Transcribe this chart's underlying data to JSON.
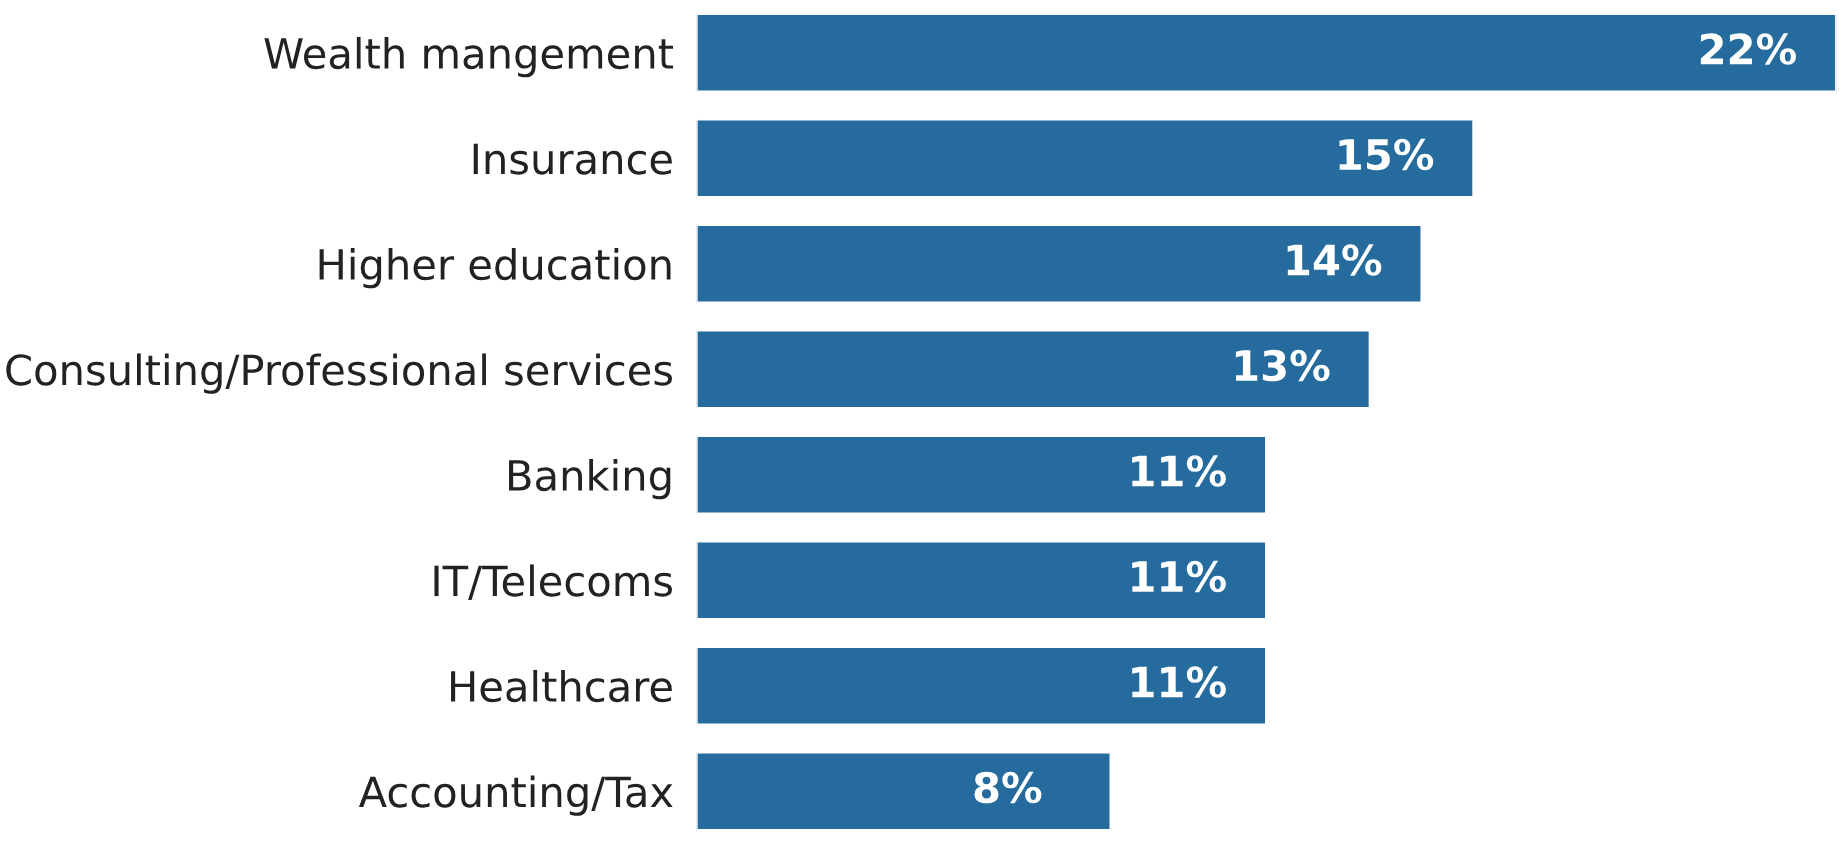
{
  "chart_data": {
    "type": "bar",
    "orientation": "horizontal",
    "categories": [
      "Wealth mangement",
      "Insurance",
      "Higher education",
      "Consulting/Professional services",
      "Banking",
      "IT/Telecoms",
      "Healthcare",
      "Accounting/Tax"
    ],
    "values": [
      22,
      15,
      14,
      13,
      11,
      11,
      11,
      8
    ],
    "value_labels": [
      "22%",
      "15%",
      "14%",
      "13%",
      "11%",
      "11%",
      "11%",
      "8%"
    ],
    "color": "#266b9d",
    "grid": false,
    "legend": false
  }
}
